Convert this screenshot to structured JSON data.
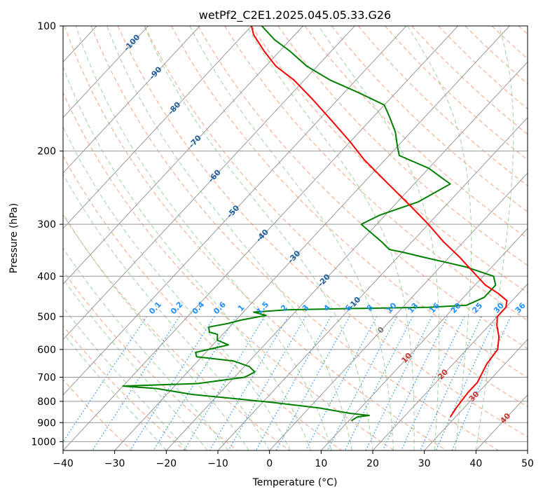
{
  "chart_data": {
    "type": "skew-t log-p diagram",
    "title": "wetPf2_C2E1.2025.045.05.33.G26",
    "xlabel": "Temperature (°C)",
    "ylabel": "Pressure (hPa)",
    "xlim": [
      -40,
      50
    ],
    "ylim_hPa": [
      1050,
      100
    ],
    "x_ticks": [
      "−40",
      "−30",
      "−20",
      "−10",
      "0",
      "10",
      "20",
      "30",
      "40",
      "50"
    ],
    "y_ticks": [
      "100",
      "200",
      "300",
      "400",
      "500",
      "600",
      "700",
      "800",
      "900",
      "1000"
    ],
    "grid": true,
    "colors": {
      "temperature": "#ff0000",
      "dewpoint": "#008000",
      "isotherm_labels": "#1f5f9f",
      "dry_adiabats": "#f4a582",
      "moist_adiabats": "#9fd39f",
      "mixing_ratio": "#1e90ff",
      "mixing_ratio_labels": "#1e90ff",
      "highlight_labels": "#cc3333",
      "grid": "#999999"
    },
    "isotherm_labels": [
      {
        "text": "-100",
        "t": -100,
        "p": 110
      },
      {
        "text": "-90",
        "t": -90,
        "p": 130
      },
      {
        "text": "-80",
        "t": -80,
        "p": 158
      },
      {
        "text": "-70",
        "t": -70,
        "p": 190
      },
      {
        "text": "-60",
        "t": -60,
        "p": 230
      },
      {
        "text": "-50",
        "t": -50,
        "p": 280
      },
      {
        "text": "-40",
        "t": -40,
        "p": 320
      },
      {
        "text": "-30",
        "t": -30,
        "p": 360
      },
      {
        "text": "-20",
        "t": -20,
        "p": 410
      },
      {
        "text": "-10",
        "t": -10,
        "p": 465
      }
    ],
    "highlight_labels": [
      {
        "text": "0",
        "t": 0,
        "p": 540,
        "color": "#777777"
      },
      {
        "text": "10",
        "t": 10,
        "p": 630
      },
      {
        "text": "20",
        "t": 20,
        "p": 690
      },
      {
        "text": "30",
        "t": 30,
        "p": 780
      },
      {
        "text": "40",
        "t": 40,
        "p": 880
      }
    ],
    "mixing_ratio_labels": [
      "0.1",
      "0.2",
      "0.4",
      "0.6",
      "1",
      "1.5",
      "2",
      "3",
      "4",
      "6",
      "8",
      "10",
      "13",
      "16",
      "20",
      "25",
      "30",
      "36"
    ],
    "mixing_ratio_values": [
      0.1,
      0.2,
      0.4,
      0.6,
      1,
      1.5,
      2,
      3,
      4,
      6,
      8,
      10,
      13,
      16,
      20,
      25,
      30,
      36
    ],
    "temperature_profile": [
      {
        "p": 872,
        "t": 29
      },
      {
        "p": 830,
        "t": 28.5
      },
      {
        "p": 760,
        "t": 28
      },
      {
        "p": 720,
        "t": 28
      },
      {
        "p": 650,
        "t": 26.5
      },
      {
        "p": 600,
        "t": 26
      },
      {
        "p": 560,
        "t": 24
      },
      {
        "p": 525,
        "t": 21.5
      },
      {
        "p": 500,
        "t": 20
      },
      {
        "p": 475,
        "t": 20
      },
      {
        "p": 458,
        "t": 19
      },
      {
        "p": 440,
        "t": 16
      },
      {
        "p": 420,
        "t": 12
      },
      {
        "p": 395,
        "t": 8
      },
      {
        "p": 360,
        "t": 2
      },
      {
        "p": 330,
        "t": -4
      },
      {
        "p": 300,
        "t": -10
      },
      {
        "p": 270,
        "t": -17
      },
      {
        "p": 240,
        "t": -25
      },
      {
        "p": 210,
        "t": -34
      },
      {
        "p": 190,
        "t": -40
      },
      {
        "p": 170,
        "t": -47
      },
      {
        "p": 150,
        "t": -55
      },
      {
        "p": 135,
        "t": -62
      },
      {
        "p": 125,
        "t": -68
      },
      {
        "p": 115,
        "t": -73
      },
      {
        "p": 105,
        "t": -78
      },
      {
        "p": 100,
        "t": -80
      }
    ],
    "dewpoint_profile": [
      {
        "p": 890,
        "t": 10.5
      },
      {
        "p": 872,
        "t": 11
      },
      {
        "p": 865,
        "t": 13
      },
      {
        "p": 855,
        "t": 9
      },
      {
        "p": 830,
        "t": 2
      },
      {
        "p": 805,
        "t": -8
      },
      {
        "p": 790,
        "t": -15
      },
      {
        "p": 770,
        "t": -25
      },
      {
        "p": 745,
        "t": -33
      },
      {
        "p": 735,
        "t": -40
      },
      {
        "p": 725,
        "t": -26
      },
      {
        "p": 700,
        "t": -18
      },
      {
        "p": 680,
        "t": -17
      },
      {
        "p": 660,
        "t": -19
      },
      {
        "p": 640,
        "t": -23
      },
      {
        "p": 625,
        "t": -31
      },
      {
        "p": 610,
        "t": -32
      },
      {
        "p": 595,
        "t": -29
      },
      {
        "p": 585,
        "t": -27
      },
      {
        "p": 570,
        "t": -30
      },
      {
        "p": 552,
        "t": -31
      },
      {
        "p": 545,
        "t": -33
      },
      {
        "p": 530,
        "t": -34
      },
      {
        "p": 520,
        "t": -31
      },
      {
        "p": 510,
        "t": -29
      },
      {
        "p": 497,
        "t": -25
      },
      {
        "p": 488,
        "t": -28
      },
      {
        "p": 482,
        "t": -22
      },
      {
        "p": 478,
        "t": -8
      },
      {
        "p": 475,
        "t": 5
      },
      {
        "p": 470,
        "t": 12
      },
      {
        "p": 450,
        "t": 14
      },
      {
        "p": 420,
        "t": 14
      },
      {
        "p": 400,
        "t": 12
      },
      {
        "p": 380,
        "t": 5
      },
      {
        "p": 360,
        "t": -5
      },
      {
        "p": 350,
        "t": -10
      },
      {
        "p": 345,
        "t": -13
      },
      {
        "p": 330,
        "t": -16
      },
      {
        "p": 300,
        "t": -23
      },
      {
        "p": 285,
        "t": -21
      },
      {
        "p": 265,
        "t": -16
      },
      {
        "p": 240,
        "t": -13
      },
      {
        "p": 220,
        "t": -20
      },
      {
        "p": 205,
        "t": -28
      },
      {
        "p": 195,
        "t": -30
      },
      {
        "p": 180,
        "t": -33
      },
      {
        "p": 165,
        "t": -37
      },
      {
        "p": 155,
        "t": -40
      },
      {
        "p": 145,
        "t": -47
      },
      {
        "p": 135,
        "t": -55
      },
      {
        "p": 125,
        "t": -62
      },
      {
        "p": 115,
        "t": -68
      },
      {
        "p": 108,
        "t": -73
      },
      {
        "p": 100,
        "t": -78
      }
    ]
  }
}
